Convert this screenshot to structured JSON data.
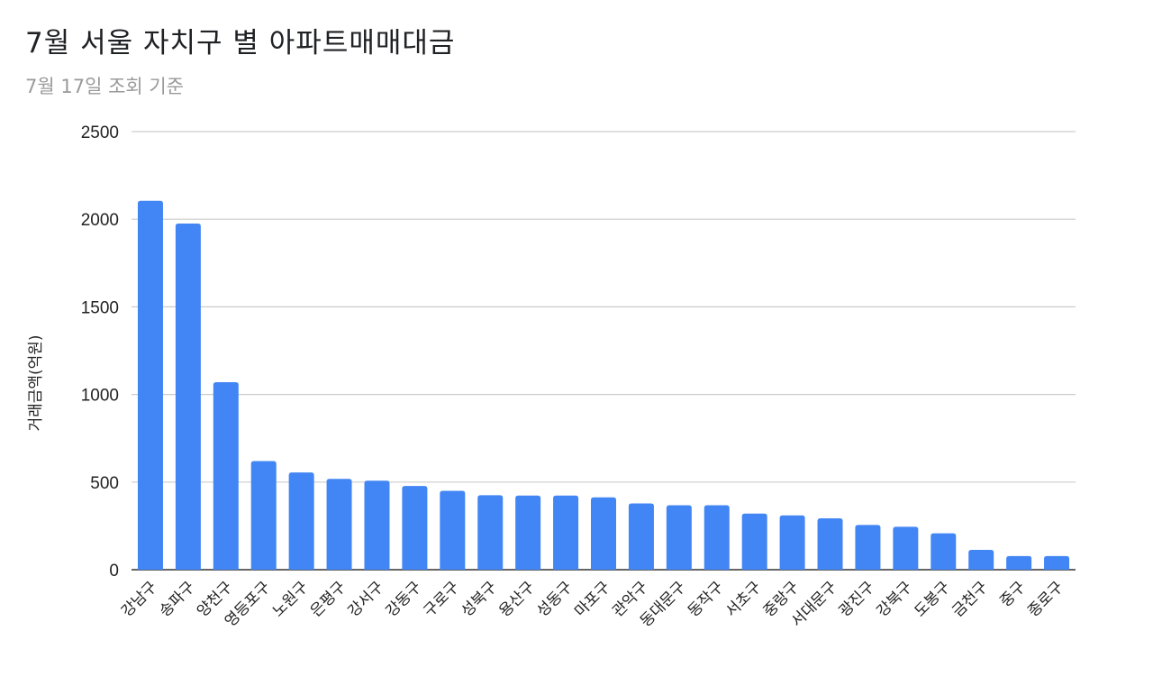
{
  "title": "7월 서울 자치구 별 아파트매매대금",
  "subtitle": "7월 17일 조회 기준",
  "chart_data": {
    "type": "bar",
    "title": "7월 서울 자치구 별 아파트매매대금",
    "subtitle": "7월 17일 조회 기준",
    "xlabel": "",
    "ylabel": "거래금액(억원)",
    "ylim": [
      0,
      2500
    ],
    "yticks": [
      0,
      500,
      1000,
      1500,
      2000,
      2500
    ],
    "grid": true,
    "bar_color": "#4285f4",
    "categories": [
      "강남구",
      "송파구",
      "양천구",
      "영등포구",
      "노원구",
      "은평구",
      "강서구",
      "강동구",
      "구로구",
      "성북구",
      "용산구",
      "성동구",
      "마포구",
      "관악구",
      "동대문구",
      "동작구",
      "서초구",
      "중랑구",
      "서대문구",
      "광진구",
      "강북구",
      "도봉구",
      "금천구",
      "중구",
      "종로구"
    ],
    "values": [
      2105,
      1975,
      1070,
      620,
      555,
      518,
      508,
      478,
      450,
      425,
      423,
      423,
      413,
      378,
      368,
      368,
      320,
      310,
      293,
      255,
      245,
      208,
      113,
      78,
      78
    ]
  }
}
